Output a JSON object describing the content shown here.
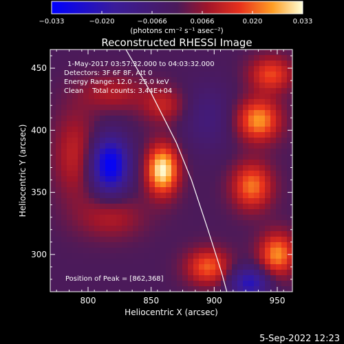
{
  "chart_data": {
    "type": "heatmap",
    "title": "Reconstructed RHESSI Image",
    "colorbar": {
      "ticks": [
        "−0.033",
        "−0.020",
        "−0.0066",
        "0.0066",
        "0.020",
        "0.033"
      ],
      "range": [
        -0.033,
        0.033
      ],
      "label": "(photons cm⁻² s⁻¹ asec⁻²)"
    },
    "xlabel": "Heliocentric X (arcsec)",
    "ylabel": "Heliocentric Y (arcsec)",
    "xlim": [
      770,
      962
    ],
    "ylim": [
      270,
      465
    ],
    "xticks": [
      800,
      850,
      900,
      950
    ],
    "yticks": [
      300,
      350,
      400,
      450
    ],
    "info_lines": [
      "1‑May‑2017 03:57:32.000 to 04:03:32.000",
      "Detectors: 3F 6F 8F, Att 0",
      "Energy Range: 12.0 ‑ 25.0 keV",
      "Clean    Total counts: 3.44E+04"
    ],
    "peak_label": "Position of Peak = [862,368]",
    "peak": [
      862,
      368
    ],
    "limb_curve": [
      [
        830,
        465
      ],
      [
        850,
        430
      ],
      [
        870,
        390
      ],
      [
        882,
        360
      ],
      [
        895,
        320
      ],
      [
        906,
        285
      ],
      [
        910,
        270
      ]
    ],
    "sources": [
      {
        "x": 859,
        "y": 368,
        "amp": 0.033,
        "sx": 9,
        "sy": 14
      },
      {
        "x": 860,
        "y": 420,
        "amp": 0.012,
        "sx": 12,
        "sy": 10
      },
      {
        "x": 790,
        "y": 380,
        "amp": 0.012,
        "sx": 12,
        "sy": 25
      },
      {
        "x": 820,
        "y": 430,
        "amp": 0.01,
        "sx": 18,
        "sy": 10
      },
      {
        "x": 818,
        "y": 330,
        "amp": 0.01,
        "sx": 18,
        "sy": 12
      },
      {
        "x": 935,
        "y": 408,
        "amp": 0.025,
        "sx": 12,
        "sy": 12
      },
      {
        "x": 945,
        "y": 445,
        "amp": 0.018,
        "sx": 12,
        "sy": 10
      },
      {
        "x": 930,
        "y": 355,
        "amp": 0.022,
        "sx": 11,
        "sy": 13
      },
      {
        "x": 950,
        "y": 300,
        "amp": 0.024,
        "sx": 10,
        "sy": 12
      },
      {
        "x": 895,
        "y": 290,
        "amp": 0.02,
        "sx": 12,
        "sy": 10
      },
      {
        "x": 817,
        "y": 372,
        "amp": -0.033,
        "sx": 11,
        "sy": 16
      },
      {
        "x": 928,
        "y": 277,
        "amp": -0.022,
        "sx": 11,
        "sy": 9
      },
      {
        "x": 895,
        "y": 410,
        "amp": -0.008,
        "sx": 15,
        "sy": 20
      }
    ]
  },
  "footer": {
    "timestamp": "5‑Sep‑2022 12:23"
  }
}
